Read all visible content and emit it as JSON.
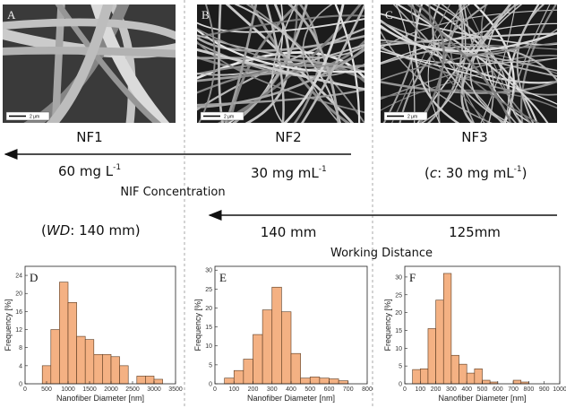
{
  "panels": [
    {
      "letter": "A",
      "scale": "2 μm",
      "name": "NF1"
    },
    {
      "letter": "B",
      "scale": "2 μm",
      "name": "NF2"
    },
    {
      "letter": "C",
      "scale": "2 μm",
      "name": "NF3"
    }
  ],
  "concentration": {
    "nf1": {
      "base": "60 mg L",
      "sup": "-1"
    },
    "nf2": {
      "base": "30 mg mL",
      "sup": "-1"
    },
    "nf3": {
      "open": "(",
      "symbol": "c",
      "base": ": 30 mg mL",
      "sup": "-1",
      "close": ")"
    },
    "label": "NIF Concentration"
  },
  "distance": {
    "fixed": {
      "open": "(",
      "symbol": "WD",
      "rest": ": 140 mm)"
    },
    "nf2": "140 mm",
    "nf3": "125mm",
    "label": "Working Distance"
  },
  "chart_data": [
    {
      "type": "histogram",
      "title": "D",
      "x_label": "Nanofiber Diameter [nm]",
      "y_label": "Frequency [%]",
      "bins": [
        400,
        600,
        800,
        1000,
        1200,
        1400,
        1600,
        1800,
        2000,
        2200,
        2400,
        2600,
        2800,
        3000,
        3200
      ],
      "values": [
        4,
        12,
        22.5,
        18,
        10.5,
        9.8,
        6.5,
        6.5,
        6,
        4,
        0,
        1.7,
        1.7,
        1
      ],
      "color": "#f4b183",
      "xlim": [
        0,
        3500
      ],
      "xticks": [
        0,
        500,
        1000,
        1500,
        2000,
        2500,
        3000,
        3500
      ],
      "ylim": [
        0,
        26
      ],
      "yticks": [
        0,
        4,
        8,
        12,
        16,
        20,
        24
      ]
    },
    {
      "type": "histogram",
      "title": "E",
      "x_label": "Nanofiber Diameter [nm]",
      "y_label": "Frequency [%]",
      "bins": [
        50,
        100,
        150,
        200,
        250,
        300,
        350,
        400,
        450,
        500,
        550,
        600,
        650,
        700
      ],
      "values": [
        1.5,
        3.5,
        6.5,
        13,
        19.5,
        25.5,
        19,
        8,
        1.5,
        1.8,
        1.5,
        1.3,
        0.8
      ],
      "color": "#f4b183",
      "xlim": [
        0,
        800
      ],
      "xticks": [
        0,
        100,
        200,
        300,
        400,
        500,
        600,
        700,
        800
      ],
      "ylim": [
        0,
        31
      ],
      "yticks": [
        0,
        5,
        10,
        15,
        20,
        25,
        30
      ]
    },
    {
      "type": "histogram",
      "title": "F",
      "x_label": "Nanofiber Diameter [nm]",
      "y_label": "Frequency [%]",
      "bins": [
        50,
        100,
        150,
        200,
        250,
        300,
        350,
        400,
        450,
        500,
        550,
        600,
        650,
        700,
        750,
        800
      ],
      "values": [
        4,
        4.2,
        15.5,
        23.5,
        31,
        8,
        5.5,
        3,
        4.2,
        1,
        0.5,
        0,
        0,
        1,
        0.5
      ],
      "color": "#f4b183",
      "xlim": [
        0,
        1000
      ],
      "xticks": [
        0,
        100,
        200,
        300,
        400,
        500,
        600,
        700,
        800,
        900,
        1000
      ],
      "ylim": [
        0,
        33
      ],
      "yticks": [
        0,
        5,
        10,
        15,
        20,
        25,
        30
      ]
    }
  ]
}
